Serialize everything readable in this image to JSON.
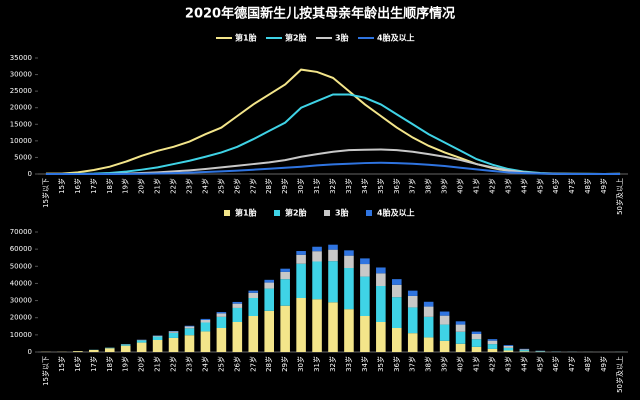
{
  "title": "2020年德国新生儿按其母亲年龄出生顺序情况",
  "chart_data": [
    {
      "type": "line",
      "categories": [
        "15岁以下",
        "15岁",
        "16岁",
        "17岁",
        "18岁",
        "19岁",
        "20岁",
        "21岁",
        "22岁",
        "23岁",
        "24岁",
        "25岁",
        "26岁",
        "27岁",
        "28岁",
        "29岁",
        "30岁",
        "31岁",
        "32岁",
        "33岁",
        "34岁",
        "35岁",
        "36岁",
        "37岁",
        "38岁",
        "39岁",
        "40岁",
        "41岁",
        "42岁",
        "43岁",
        "44岁",
        "45岁",
        "46岁",
        "47岁",
        "48岁",
        "49岁",
        "50岁及以上"
      ],
      "ylim": [
        0,
        35000
      ],
      "yticks": [
        0,
        5000,
        10000,
        15000,
        20000,
        25000,
        30000,
        35000
      ],
      "series": [
        {
          "name": "第1胎",
          "color": "#f3e58a",
          "values": [
            100,
            100,
            500,
            1200,
            2200,
            3700,
            5500,
            7000,
            8200,
            9800,
            12000,
            14000,
            17500,
            21000,
            24000,
            27000,
            31500,
            30800,
            29000,
            25000,
            21000,
            17500,
            14000,
            11000,
            8500,
            6500,
            4800,
            3000,
            1800,
            900,
            400,
            150,
            60,
            30,
            20,
            10,
            20
          ]
        },
        {
          "name": "第2胎",
          "color": "#3fd3e6",
          "values": [
            0,
            0,
            30,
            100,
            300,
            700,
            1300,
            2000,
            3000,
            4000,
            5200,
            6500,
            8200,
            10500,
            13000,
            15500,
            20000,
            22000,
            24000,
            24000,
            23000,
            21000,
            18000,
            15000,
            12000,
            9500,
            7000,
            4500,
            2800,
            1500,
            700,
            300,
            100,
            50,
            20,
            10,
            30
          ]
        },
        {
          "name": "3胎",
          "color": "#c8c8c8",
          "values": [
            0,
            0,
            0,
            10,
            50,
            150,
            300,
            500,
            800,
            1100,
            1500,
            2000,
            2500,
            3000,
            3500,
            4200,
            5200,
            6000,
            6700,
            7200,
            7300,
            7400,
            7200,
            6700,
            6000,
            5200,
            4200,
            3000,
            2000,
            1100,
            500,
            200,
            80,
            30,
            10,
            5,
            20
          ]
        },
        {
          "name": "4胎及以上",
          "color": "#2f74e0",
          "values": [
            0,
            0,
            0,
            0,
            10,
            30,
            80,
            150,
            250,
            400,
            600,
            800,
            1000,
            1300,
            1600,
            1900,
            2200,
            2600,
            2900,
            3100,
            3300,
            3400,
            3300,
            3100,
            2800,
            2400,
            1900,
            1400,
            900,
            500,
            250,
            100,
            40,
            15,
            5,
            2,
            10
          ]
        }
      ]
    },
    {
      "type": "stacked_bar",
      "categories": [
        "15岁以下",
        "15岁",
        "16岁",
        "17岁",
        "18岁",
        "19岁",
        "20岁",
        "21岁",
        "22岁",
        "23岁",
        "24岁",
        "25岁",
        "26岁",
        "27岁",
        "28岁",
        "29岁",
        "30岁",
        "31岁",
        "32岁",
        "33岁",
        "34岁",
        "35岁",
        "36岁",
        "37岁",
        "38岁",
        "39岁",
        "40岁",
        "41岁",
        "42岁",
        "43岁",
        "44岁",
        "45岁",
        "46岁",
        "47岁",
        "48岁",
        "49岁",
        "50岁及以上"
      ],
      "ylim": [
        0,
        70000
      ],
      "yticks": [
        0,
        10000,
        20000,
        30000,
        40000,
        50000,
        60000,
        70000
      ],
      "series": [
        {
          "name": "第1胎",
          "color": "#f3e58a",
          "values": [
            100,
            100,
            500,
            1200,
            2200,
            3700,
            5500,
            7000,
            8200,
            9800,
            12000,
            14000,
            17500,
            21000,
            24000,
            27000,
            31500,
            30800,
            29000,
            25000,
            21000,
            17500,
            14000,
            11000,
            8500,
            6500,
            4800,
            3000,
            1800,
            900,
            400,
            150,
            60,
            30,
            20,
            10,
            20
          ]
        },
        {
          "name": "第2胎",
          "color": "#3fd3e6",
          "values": [
            0,
            0,
            30,
            100,
            300,
            700,
            1300,
            2000,
            3000,
            4000,
            5200,
            6500,
            8200,
            10500,
            13000,
            15500,
            20000,
            22000,
            24000,
            24000,
            23000,
            21000,
            18000,
            15000,
            12000,
            9500,
            7000,
            4500,
            2800,
            1500,
            700,
            300,
            100,
            50,
            20,
            10,
            30
          ]
        },
        {
          "name": "3胎",
          "color": "#c8c8c8",
          "values": [
            0,
            0,
            0,
            10,
            50,
            150,
            300,
            500,
            800,
            1100,
            1500,
            2000,
            2500,
            3000,
            3500,
            4200,
            5200,
            6000,
            6700,
            7200,
            7300,
            7400,
            7200,
            6700,
            6000,
            5200,
            4200,
            3000,
            2000,
            1100,
            500,
            200,
            80,
            30,
            10,
            5,
            20
          ]
        },
        {
          "name": "4胎及以上",
          "color": "#2f74e0",
          "values": [
            0,
            0,
            0,
            0,
            10,
            30,
            80,
            150,
            250,
            400,
            600,
            800,
            1000,
            1300,
            1600,
            1900,
            2200,
            2600,
            2900,
            3100,
            3300,
            3400,
            3300,
            3100,
            2800,
            2400,
            1900,
            1400,
            900,
            500,
            250,
            100,
            40,
            15,
            5,
            2,
            10
          ]
        }
      ]
    }
  ]
}
